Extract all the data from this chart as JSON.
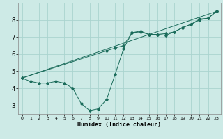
{
  "xlabel": "Humidex (Indice chaleur)",
  "bg_color": "#cdeae6",
  "grid_color": "#aad4cf",
  "line_color": "#1a6b5a",
  "xlim": [
    -0.5,
    23.5
  ],
  "ylim": [
    2.5,
    9.0
  ],
  "xticks": [
    0,
    1,
    2,
    3,
    4,
    5,
    6,
    7,
    8,
    9,
    10,
    11,
    12,
    13,
    14,
    15,
    16,
    17,
    18,
    19,
    20,
    21,
    22,
    23
  ],
  "yticks": [
    3,
    4,
    5,
    6,
    7,
    8
  ],
  "line1_x": [
    0,
    1,
    2,
    3,
    4,
    5,
    6,
    7,
    8,
    9,
    10,
    11,
    12,
    13,
    14,
    15,
    16,
    17,
    18,
    19,
    20,
    21,
    22,
    23
  ],
  "line1_y": [
    4.6,
    4.4,
    4.3,
    4.3,
    4.4,
    4.3,
    4.0,
    3.1,
    2.7,
    2.8,
    3.35,
    4.8,
    6.3,
    7.25,
    7.35,
    7.15,
    7.15,
    7.1,
    7.3,
    7.55,
    7.75,
    8.05,
    8.1,
    8.5
  ],
  "line2_x": [
    0,
    10,
    11,
    12,
    13,
    14,
    15,
    16,
    17,
    18,
    19,
    20,
    21,
    22,
    23
  ],
  "line2_y": [
    4.6,
    6.2,
    6.35,
    6.5,
    7.25,
    7.3,
    7.15,
    7.15,
    7.2,
    7.3,
    7.55,
    7.75,
    8.0,
    8.1,
    8.5
  ],
  "line3_x": [
    0,
    23
  ],
  "line3_y": [
    4.6,
    8.5
  ]
}
